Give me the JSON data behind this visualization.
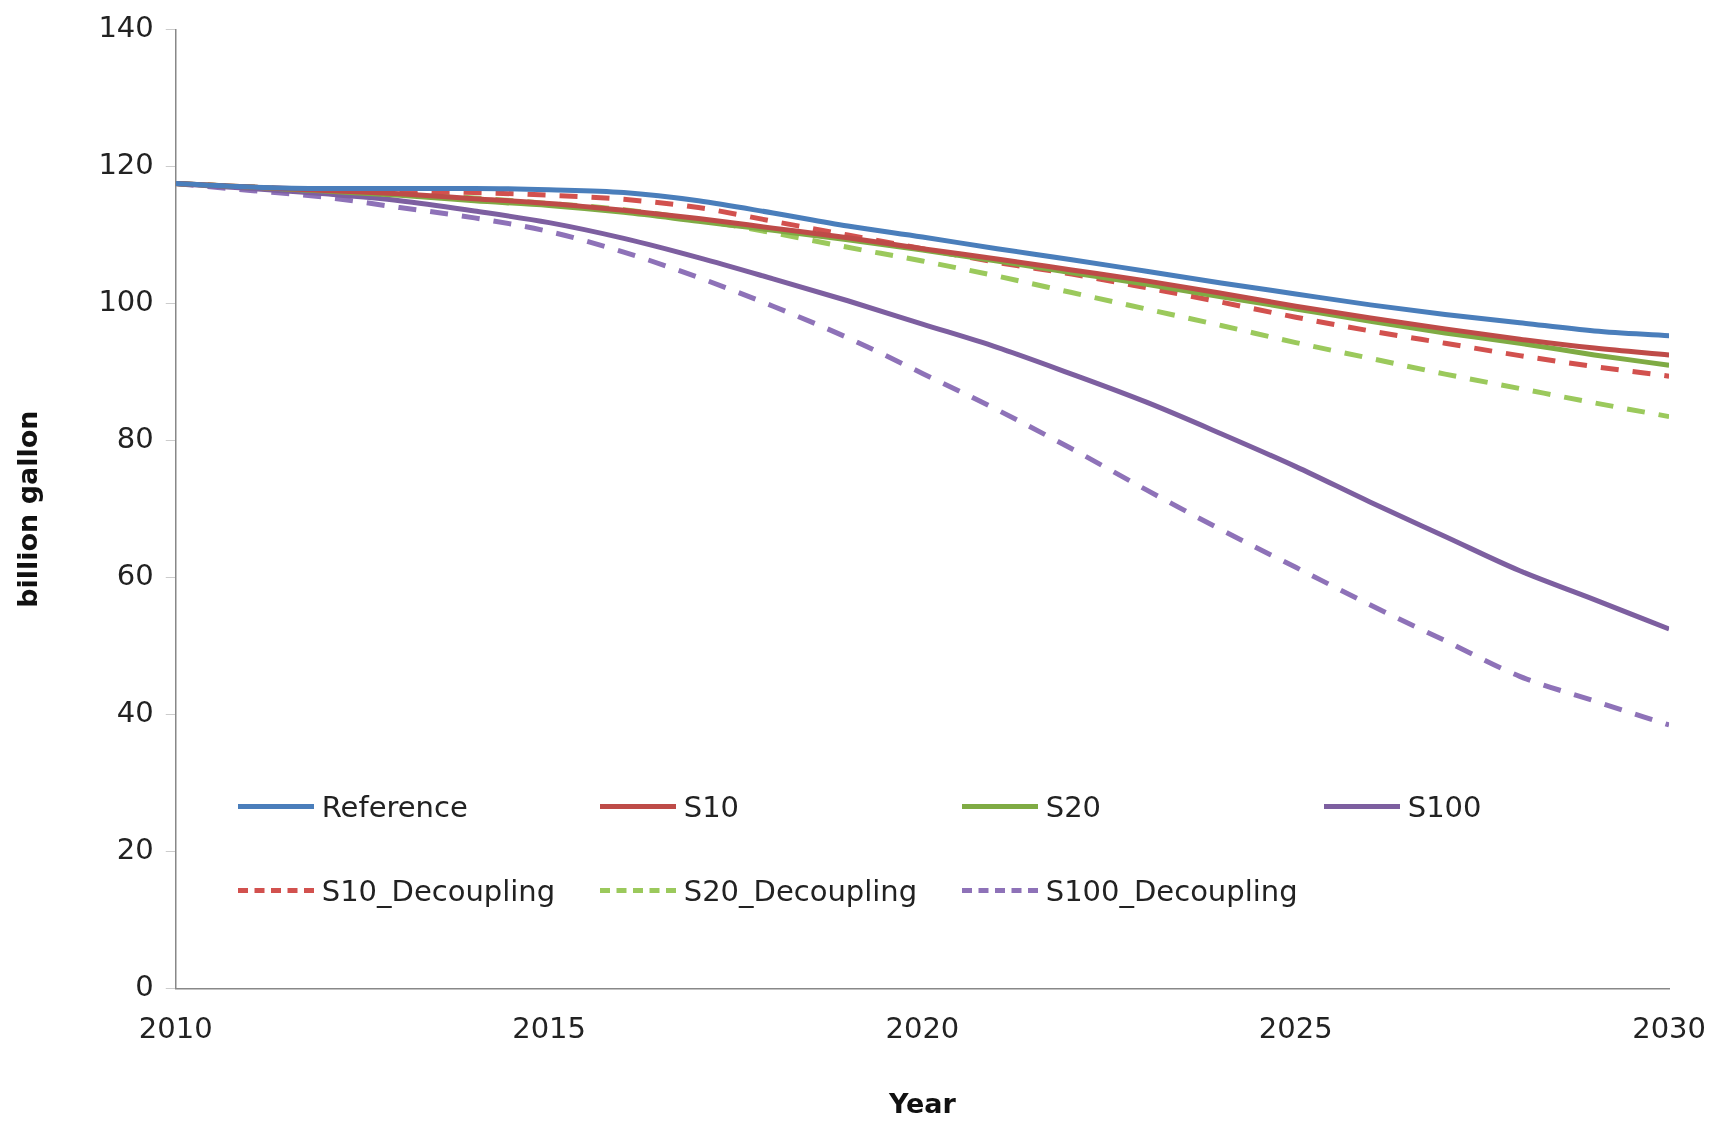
{
  "chart_data": {
    "type": "line",
    "xlabel": "Year",
    "ylabel": "billion gallon",
    "x": [
      2010,
      2011,
      2012,
      2013,
      2014,
      2015,
      2016,
      2017,
      2018,
      2019,
      2020,
      2021,
      2022,
      2023,
      2024,
      2025,
      2026,
      2027,
      2028,
      2029,
      2030
    ],
    "xlim": [
      2010,
      2030
    ],
    "xticks": [
      2010,
      2015,
      2020,
      2025,
      2030
    ],
    "ylim": [
      0,
      140
    ],
    "yticks": [
      0,
      20,
      40,
      60,
      80,
      100,
      120,
      140
    ],
    "grid": false,
    "legend": "bottom",
    "marker": "none",
    "series": [
      {
        "name": "Reference",
        "color": "#4a7ebb",
        "line_style": "solid",
        "values": [
          117.5,
          117,
          116.8,
          116.8,
          116.8,
          116.6,
          116.2,
          115,
          113.2,
          111.3,
          109.7,
          108,
          106.4,
          104.7,
          103,
          101.4,
          99.8,
          98.4,
          97.2,
          96,
          95.3
        ]
      },
      {
        "name": "S10",
        "color": "#be4b48",
        "line_style": "solid",
        "values": [
          117.5,
          117,
          116.5,
          116,
          115.3,
          114.6,
          113.6,
          112.4,
          111,
          109.6,
          108,
          106.5,
          104.9,
          103.3,
          101.5,
          99.6,
          97.9,
          96.3,
          94.8,
          93.5,
          92.5
        ]
      },
      {
        "name": "S20",
        "color": "#7fab44",
        "line_style": "solid",
        "values": [
          117.5,
          117,
          116.4,
          115.8,
          115,
          114.3,
          113.3,
          112,
          110.7,
          109.3,
          107.8,
          106.2,
          104.5,
          102.8,
          101,
          99.2,
          97.4,
          95.7,
          94.2,
          92.5,
          91
        ]
      },
      {
        "name": "S100",
        "color": "#7d5fa0",
        "line_style": "solid",
        "values": [
          117.5,
          116.8,
          116,
          115,
          113.5,
          111.8,
          109.5,
          106.7,
          103.6,
          100.4,
          97,
          93.6,
          89.7,
          85.6,
          81,
          76.2,
          71,
          66,
          61,
          56.8,
          52.5
        ]
      },
      {
        "name": "S10_Decoupling",
        "color": "#d2514e",
        "line_style": "dashed",
        "values": [
          117.5,
          117,
          116.6,
          116.4,
          116.2,
          115.8,
          115.2,
          114,
          112,
          110,
          108,
          106,
          104.3,
          102.3,
          100.2,
          98,
          96,
          94.2,
          92.4,
          90.8,
          89.4
        ]
      },
      {
        "name": "S20_Decoupling",
        "color": "#9bc95c",
        "line_style": "dashed",
        "values": [
          117.5,
          117,
          116.4,
          116,
          115.4,
          114.6,
          113.7,
          112.2,
          110.3,
          108.2,
          106.2,
          104,
          101.6,
          99.2,
          96.8,
          94.3,
          92,
          89.7,
          87.6,
          85.5,
          83.5
        ]
      },
      {
        "name": "S100_Decoupling",
        "color": "#8e72b8",
        "line_style": "dashed",
        "values": [
          117.5,
          116.5,
          115.5,
          114,
          112.5,
          110.5,
          107.5,
          103.8,
          99.6,
          95,
          89.8,
          84.5,
          78.8,
          72.8,
          67,
          61.5,
          56,
          50.8,
          45.6,
          42,
          38.5
        ]
      }
    ]
  }
}
